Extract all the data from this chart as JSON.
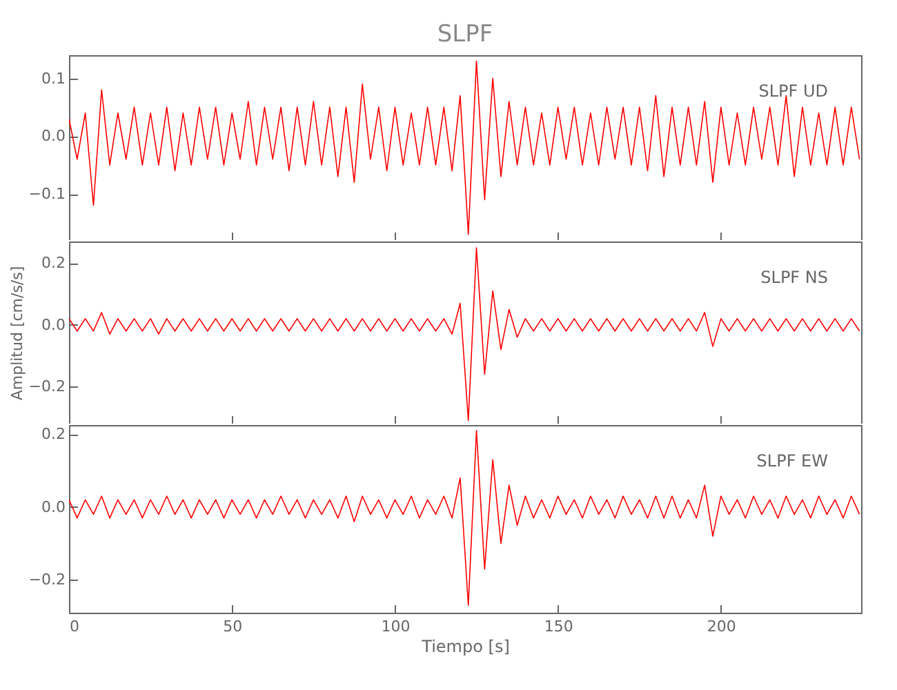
{
  "chart_data": [
    {
      "type": "line",
      "title": "SLPF",
      "annotations": [
        "SLPF UD"
      ],
      "tick_labels": "y",
      "x": [
        0,
        2.5,
        5,
        7.5,
        10,
        12.5,
        15,
        17.5,
        20,
        22.5,
        25,
        27.5,
        30,
        32.5,
        35,
        37.5,
        40,
        42.5,
        45,
        47.5,
        50,
        52.5,
        55,
        57.5,
        60,
        62.5,
        65,
        67.5,
        70,
        72.5,
        75,
        77.5,
        80,
        82.5,
        85,
        87.5,
        90,
        92.5,
        95,
        97.5,
        100,
        102.5,
        105,
        107.5,
        110,
        112.5,
        115,
        117.5,
        120,
        122.5,
        125,
        127.5,
        130,
        132.5,
        135,
        137.5,
        140,
        142.5,
        145,
        147.5,
        150,
        152.5,
        155,
        157.5,
        160,
        162.5,
        165,
        167.5,
        170,
        172.5,
        175,
        177.5,
        180,
        182.5,
        185,
        187.5,
        190,
        192.5,
        195,
        197.5,
        200,
        202.5,
        205,
        207.5,
        210,
        212.5,
        215,
        217.5,
        220,
        222.5,
        225,
        227.5,
        230,
        232.5,
        235,
        237.5,
        240,
        242.5
      ],
      "series": [
        {
          "color": "#ff0000",
          "values": [
            0.03,
            -0.04,
            0.04,
            -0.12,
            0.08,
            -0.05,
            0.04,
            -0.04,
            0.05,
            -0.05,
            0.04,
            -0.05,
            0.05,
            -0.06,
            0.04,
            -0.05,
            0.05,
            -0.04,
            0.05,
            -0.05,
            0.04,
            -0.04,
            0.06,
            -0.05,
            0.05,
            -0.04,
            0.05,
            -0.06,
            0.05,
            -0.05,
            0.06,
            -0.05,
            0.05,
            -0.07,
            0.05,
            -0.08,
            0.09,
            -0.04,
            0.05,
            -0.06,
            0.05,
            -0.05,
            0.04,
            -0.05,
            0.05,
            -0.05,
            0.05,
            -0.06,
            0.07,
            -0.17,
            0.13,
            -0.11,
            0.1,
            -0.07,
            0.06,
            -0.05,
            0.05,
            -0.05,
            0.04,
            -0.05,
            0.05,
            -0.04,
            0.05,
            -0.05,
            0.04,
            -0.05,
            0.05,
            -0.04,
            0.05,
            -0.05,
            0.05,
            -0.06,
            0.07,
            -0.07,
            0.05,
            -0.05,
            0.05,
            -0.05,
            0.06,
            -0.08,
            0.05,
            -0.05,
            0.04,
            -0.05,
            0.05,
            -0.04,
            0.05,
            -0.05,
            0.07,
            -0.07,
            0.05,
            -0.05,
            0.04,
            -0.05,
            0.05,
            -0.05,
            0.05,
            -0.04
          ]
        }
      ],
      "xlim": [
        0,
        243
      ],
      "xticks": [
        0,
        50,
        100,
        150,
        200
      ],
      "ylim": [
        -0.18,
        0.14
      ],
      "yticks": [
        {
          "value": -0.1,
          "label": "−0.1"
        },
        {
          "value": 0,
          "label": "0.0"
        },
        {
          "value": 0.1,
          "label": "0.1"
        }
      ]
    },
    {
      "type": "line",
      "ylabel": "Amplitud [cm/s/s]",
      "annotations": [
        "SLPF NS"
      ],
      "tick_labels": "y",
      "x": [
        0,
        2.5,
        5,
        7.5,
        10,
        12.5,
        15,
        17.5,
        20,
        22.5,
        25,
        27.5,
        30,
        32.5,
        35,
        37.5,
        40,
        42.5,
        45,
        47.5,
        50,
        52.5,
        55,
        57.5,
        60,
        62.5,
        65,
        67.5,
        70,
        72.5,
        75,
        77.5,
        80,
        82.5,
        85,
        87.5,
        90,
        92.5,
        95,
        97.5,
        100,
        102.5,
        105,
        107.5,
        110,
        112.5,
        115,
        117.5,
        120,
        122.5,
        125,
        127.5,
        130,
        132.5,
        135,
        137.5,
        140,
        142.5,
        145,
        147.5,
        150,
        152.5,
        155,
        157.5,
        160,
        162.5,
        165,
        167.5,
        170,
        172.5,
        175,
        177.5,
        180,
        182.5,
        185,
        187.5,
        190,
        192.5,
        195,
        197.5,
        200,
        202.5,
        205,
        207.5,
        210,
        212.5,
        215,
        217.5,
        220,
        222.5,
        225,
        227.5,
        230,
        232.5,
        235,
        237.5,
        240,
        242.5
      ],
      "series": [
        {
          "color": "#ff0000",
          "values": [
            0.02,
            -0.02,
            0.02,
            -0.02,
            0.04,
            -0.03,
            0.02,
            -0.02,
            0.02,
            -0.02,
            0.02,
            -0.03,
            0.02,
            -0.02,
            0.02,
            -0.02,
            0.02,
            -0.02,
            0.02,
            -0.02,
            0.02,
            -0.02,
            0.02,
            -0.02,
            0.02,
            -0.02,
            0.02,
            -0.02,
            0.02,
            -0.02,
            0.02,
            -0.02,
            0.02,
            -0.02,
            0.02,
            -0.02,
            0.02,
            -0.02,
            0.02,
            -0.02,
            0.02,
            -0.02,
            0.02,
            -0.02,
            0.02,
            -0.02,
            0.02,
            -0.03,
            0.07,
            -0.31,
            0.25,
            -0.16,
            0.11,
            -0.08,
            0.05,
            -0.04,
            0.02,
            -0.02,
            0.02,
            -0.02,
            0.02,
            -0.02,
            0.02,
            -0.02,
            0.02,
            -0.02,
            0.02,
            -0.02,
            0.02,
            -0.02,
            0.02,
            -0.02,
            0.02,
            -0.02,
            0.02,
            -0.02,
            0.02,
            -0.02,
            0.04,
            -0.07,
            0.02,
            -0.02,
            0.02,
            -0.02,
            0.02,
            -0.02,
            0.02,
            -0.02,
            0.02,
            -0.02,
            0.02,
            -0.02,
            0.02,
            -0.02,
            0.02,
            -0.02,
            0.02,
            -0.02
          ]
        }
      ],
      "xlim": [
        0,
        243
      ],
      "xticks": [
        0,
        50,
        100,
        150,
        200
      ],
      "ylim": [
        -0.32,
        0.27
      ],
      "yticks": [
        {
          "value": -0.2,
          "label": "−0.2"
        },
        {
          "value": 0,
          "label": "0.0"
        },
        {
          "value": 0.2,
          "label": "0.2"
        }
      ]
    },
    {
      "type": "line",
      "xlabel": "Tiempo [s]",
      "annotations": [
        "SLPF EW"
      ],
      "x": [
        0,
        2.5,
        5,
        7.5,
        10,
        12.5,
        15,
        17.5,
        20,
        22.5,
        25,
        27.5,
        30,
        32.5,
        35,
        37.5,
        40,
        42.5,
        45,
        47.5,
        50,
        52.5,
        55,
        57.5,
        60,
        62.5,
        65,
        67.5,
        70,
        72.5,
        75,
        77.5,
        80,
        82.5,
        85,
        87.5,
        90,
        92.5,
        95,
        97.5,
        100,
        102.5,
        105,
        107.5,
        110,
        112.5,
        115,
        117.5,
        120,
        122.5,
        125,
        127.5,
        130,
        132.5,
        135,
        137.5,
        140,
        142.5,
        145,
        147.5,
        150,
        152.5,
        155,
        157.5,
        160,
        162.5,
        165,
        167.5,
        170,
        172.5,
        175,
        177.5,
        180,
        182.5,
        185,
        187.5,
        190,
        192.5,
        195,
        197.5,
        200,
        202.5,
        205,
        207.5,
        210,
        212.5,
        215,
        217.5,
        220,
        222.5,
        225,
        227.5,
        230,
        232.5,
        235,
        237.5,
        240,
        242.5
      ],
      "series": [
        {
          "color": "#ff0000",
          "values": [
            0.02,
            -0.03,
            0.02,
            -0.02,
            0.03,
            -0.03,
            0.02,
            -0.02,
            0.02,
            -0.03,
            0.02,
            -0.02,
            0.03,
            -0.02,
            0.02,
            -0.03,
            0.02,
            -0.02,
            0.02,
            -0.03,
            0.02,
            -0.02,
            0.02,
            -0.03,
            0.02,
            -0.02,
            0.03,
            -0.02,
            0.02,
            -0.03,
            0.02,
            -0.02,
            0.02,
            -0.03,
            0.03,
            -0.04,
            0.03,
            -0.02,
            0.02,
            -0.03,
            0.02,
            -0.02,
            0.03,
            -0.03,
            0.02,
            -0.02,
            0.03,
            -0.03,
            0.08,
            -0.27,
            0.21,
            -0.17,
            0.13,
            -0.1,
            0.06,
            -0.05,
            0.03,
            -0.03,
            0.02,
            -0.03,
            0.03,
            -0.02,
            0.02,
            -0.03,
            0.03,
            -0.02,
            0.02,
            -0.03,
            0.03,
            -0.02,
            0.02,
            -0.03,
            0.03,
            -0.03,
            0.03,
            -0.03,
            0.02,
            -0.03,
            0.06,
            -0.08,
            0.03,
            -0.02,
            0.02,
            -0.03,
            0.03,
            -0.02,
            0.02,
            -0.03,
            0.03,
            -0.02,
            0.02,
            -0.03,
            0.03,
            -0.02,
            0.02,
            -0.03,
            0.03,
            -0.02
          ]
        }
      ],
      "xlim": [
        0,
        243
      ],
      "xticks": [
        0,
        50,
        100,
        150,
        200
      ],
      "ylim": [
        -0.29,
        0.225
      ],
      "yticks": [
        {
          "value": -0.2,
          "label": "−0.2"
        },
        {
          "value": 0,
          "label": "0.0"
        },
        {
          "value": 0.2,
          "label": "0.2"
        }
      ]
    }
  ]
}
